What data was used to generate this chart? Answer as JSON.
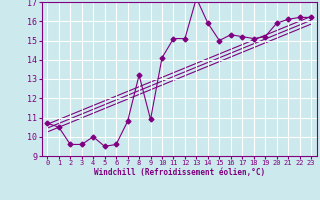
{
  "xlabel": "Windchill (Refroidissement éolien,°C)",
  "x_data": [
    0,
    1,
    2,
    3,
    4,
    5,
    6,
    7,
    8,
    9,
    10,
    11,
    12,
    13,
    14,
    15,
    16,
    17,
    18,
    19,
    20,
    21,
    22,
    23
  ],
  "y_data": [
    10.7,
    10.5,
    9.6,
    9.6,
    10.0,
    9.5,
    9.6,
    10.8,
    13.2,
    10.9,
    14.1,
    15.1,
    15.1,
    17.2,
    15.9,
    15.0,
    15.3,
    15.2,
    15.1,
    15.2,
    15.9,
    16.1,
    16.2,
    16.2
  ],
  "line_color": "#800080",
  "marker": "D",
  "marker_size": 2.5,
  "bg_color": "#cce9ed",
  "grid_color": "#ffffff",
  "axis_color": "#800080",
  "tick_color": "#800080",
  "ylim": [
    9,
    17
  ],
  "xlim": [
    -0.5,
    23.5
  ],
  "yticks": [
    9,
    10,
    11,
    12,
    13,
    14,
    15,
    16,
    17
  ],
  "xticks": [
    0,
    1,
    2,
    3,
    4,
    5,
    6,
    7,
    8,
    9,
    10,
    11,
    12,
    13,
    14,
    15,
    16,
    17,
    18,
    19,
    20,
    21,
    22,
    23
  ],
  "ref_lines": [
    {
      "x0": 0,
      "y0": 10.65,
      "x1": 23,
      "y1": 16.25
    },
    {
      "x0": 0,
      "y0": 10.45,
      "x1": 23,
      "y1": 16.05
    },
    {
      "x0": 0,
      "y0": 10.25,
      "x1": 23,
      "y1": 15.85
    }
  ]
}
